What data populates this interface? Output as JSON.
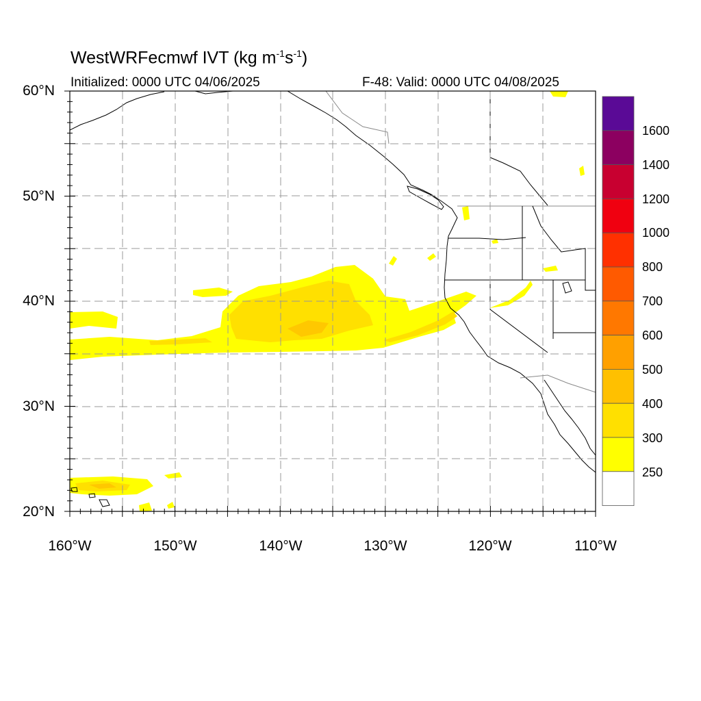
{
  "title": {
    "main_text": "WestWRFecmwf IVT (kg m",
    "sup1": "-1",
    "mid_text": "s",
    "sup2": "-1",
    "end_text": ")"
  },
  "subtitle": {
    "initialized": "Initialized: 0000 UTC 04/06/2025",
    "valid": "F-48: Valid: 0000 UTC 04/08/2025"
  },
  "map": {
    "lat_labels": [
      "60°N",
      "50°N",
      "40°N",
      "30°N",
      "20°N"
    ],
    "lon_labels": [
      "160°W",
      "150°W",
      "140°W",
      "130°W",
      "120°W",
      "110°W"
    ],
    "lat_range": [
      20,
      60
    ],
    "lon_range": [
      -160,
      -110
    ]
  },
  "colorbar": {
    "labels": [
      "1600",
      "1400",
      "1200",
      "1000",
      "800",
      "700",
      "600",
      "500",
      "400",
      "300",
      "250"
    ],
    "colors": [
      "#5a0a96",
      "#8c0060",
      "#c80030",
      "#f00010",
      "#ff3000",
      "#ff5a00",
      "#ff7800",
      "#ffa000",
      "#ffc000",
      "#ffe000",
      "#ffff00",
      "#ffffff"
    ]
  }
}
